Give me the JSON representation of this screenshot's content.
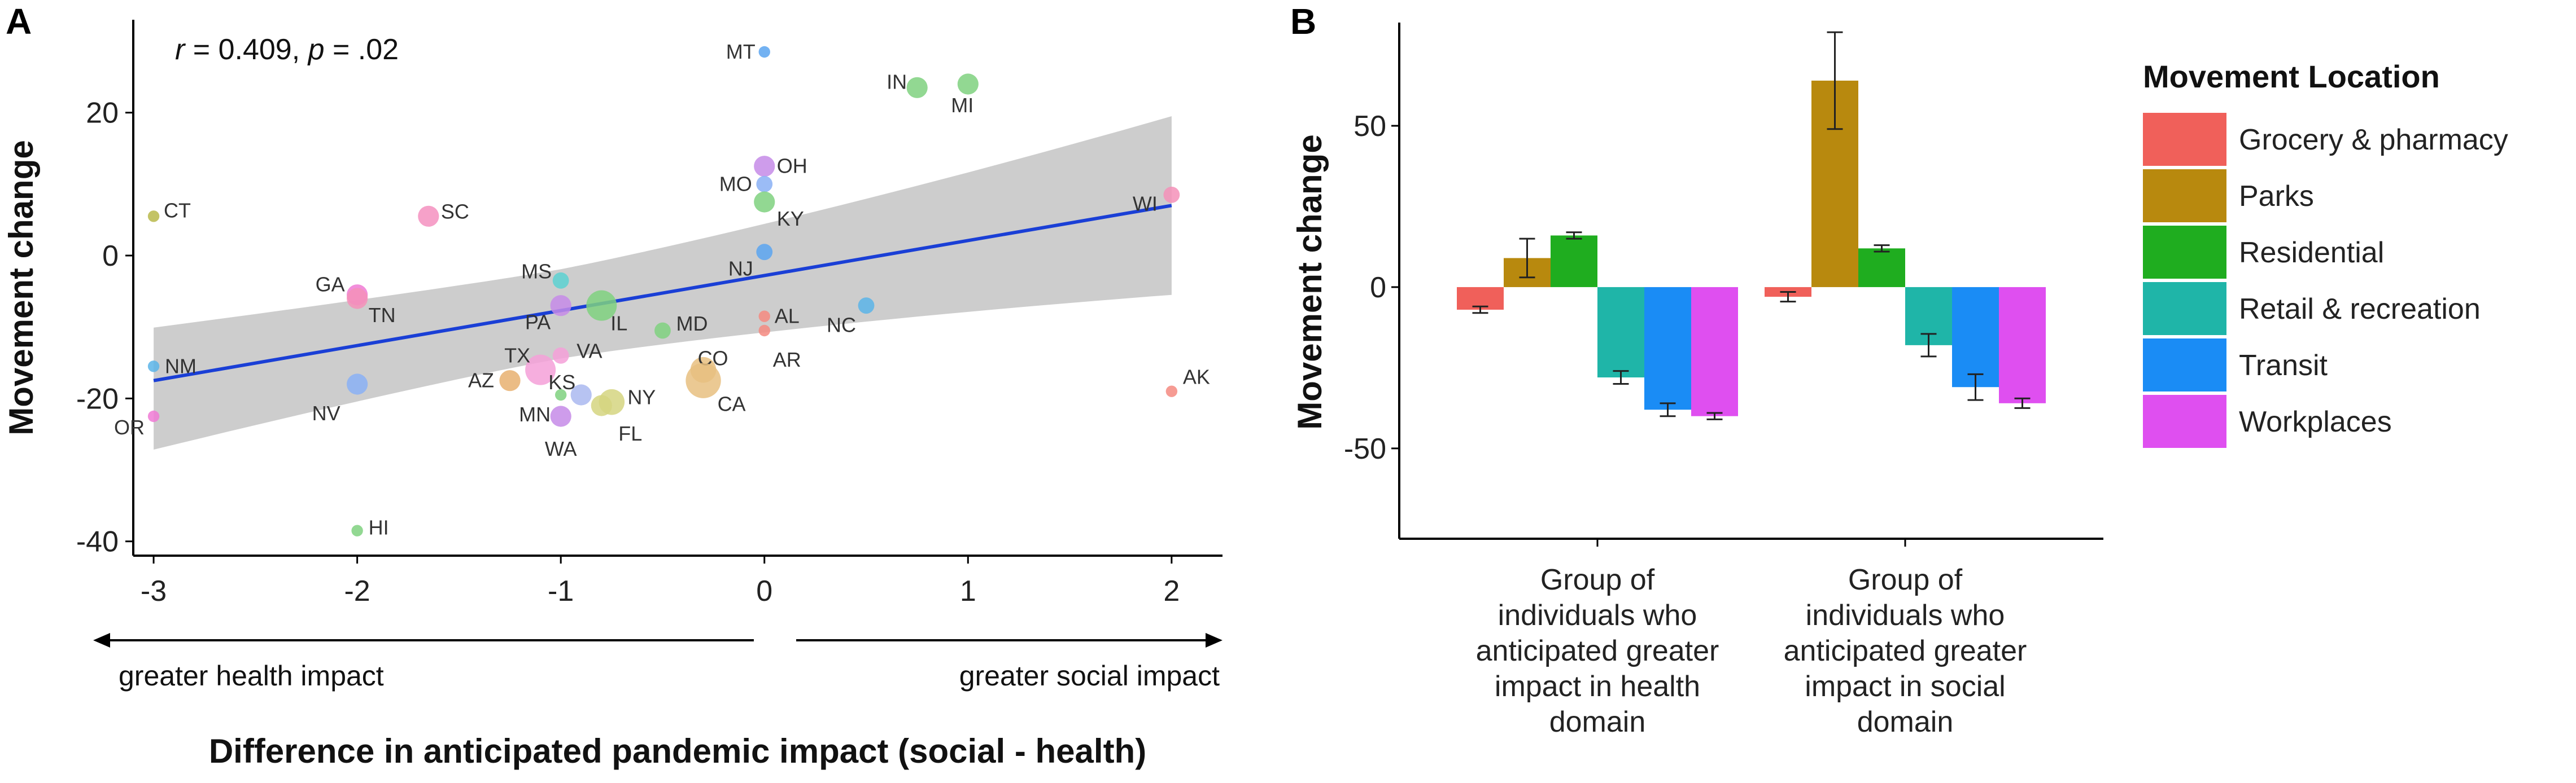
{
  "chart_data": [
    {
      "panel": "A",
      "type": "scatter",
      "title": "",
      "xlabel": "Difference in anticipated pandemic impact (social - health)",
      "ylabel": "Movement change",
      "xlim": [
        -3.1,
        2.25
      ],
      "ylim": [
        -42,
        33
      ],
      "xticks": [
        -3,
        -2,
        -1,
        0,
        1,
        2
      ],
      "yticks": [
        -40,
        -20,
        0,
        20
      ],
      "annotation": {
        "r_label": "r",
        "r_text": " = 0.409, ",
        "p_label": "p",
        "p_text": " = .02"
      },
      "arrows": {
        "left": "greater health impact",
        "right": "greater social impact"
      },
      "regression": {
        "x": [
          -3,
          2
        ],
        "y": [
          -17.5,
          7
        ],
        "ci_upper": [
          -8.3,
          19.5
        ],
        "ci_lower": [
          -29.5,
          -5.5
        ]
      },
      "points": [
        {
          "label": "MT",
          "x": 0.0,
          "y": 28.5,
          "size": 1,
          "color": "#5aa5f0"
        },
        {
          "label": "IN",
          "x": 0.75,
          "y": 23.5,
          "size": 3,
          "color": "#7fd17f"
        },
        {
          "label": "MI",
          "x": 1.0,
          "y": 24.0,
          "size": 3,
          "color": "#7fd17f"
        },
        {
          "label": "OH",
          "x": 0.0,
          "y": 12.5,
          "size": 3,
          "color": "#c58be8"
        },
        {
          "label": "MO",
          "x": 0.0,
          "y": 10.0,
          "size": 2,
          "color": "#8ab0f5"
        },
        {
          "label": "KY",
          "x": 0.0,
          "y": 7.5,
          "size": 3,
          "color": "#7fd17f"
        },
        {
          "label": "WI",
          "x": 2.0,
          "y": 8.5,
          "size": 2,
          "color": "#f590b8"
        },
        {
          "label": "CT",
          "x": -3.0,
          "y": 5.5,
          "size": 1,
          "color": "#b9b94a"
        },
        {
          "label": "SC",
          "x": -1.65,
          "y": 5.5,
          "size": 3,
          "color": "#f590c0"
        },
        {
          "label": "NJ",
          "x": 0.0,
          "y": 0.5,
          "size": 2,
          "color": "#5aa5f0"
        },
        {
          "label": "MS",
          "x": -1.0,
          "y": -3.5,
          "size": 2,
          "color": "#5cd1d1"
        },
        {
          "label": "GA",
          "x": -2.0,
          "y": -5.5,
          "size": 3,
          "color": "#f07ad5"
        },
        {
          "label": "TN",
          "x": -2.0,
          "y": -6.0,
          "size": 3,
          "color": "#f590b8"
        },
        {
          "label": "IL",
          "x": -0.8,
          "y": -7.0,
          "size": 5,
          "color": "#7fd17f"
        },
        {
          "label": "PA",
          "x": -1.0,
          "y": -7.0,
          "size": 3,
          "color": "#c58be8"
        },
        {
          "label": "NC",
          "x": 0.5,
          "y": -7.0,
          "size": 2,
          "color": "#5ab4e8"
        },
        {
          "label": "AL",
          "x": 0.0,
          "y": -8.5,
          "size": 1,
          "color": "#f58a80"
        },
        {
          "label": "MD",
          "x": -0.5,
          "y": -10.5,
          "size": 2,
          "color": "#7fd17f"
        },
        {
          "label": "AR",
          "x": 0.0,
          "y": -10.5,
          "size": 1,
          "color": "#f58a80"
        },
        {
          "label": "VA",
          "x": -1.0,
          "y": -14.0,
          "size": 2,
          "color": "#f5a0d8"
        },
        {
          "label": "TX",
          "x": -1.1,
          "y": -16.0,
          "size": 5,
          "color": "#f5a0d8"
        },
        {
          "label": "CO",
          "x": -0.3,
          "y": -16.0,
          "size": 4,
          "color": "#e8c080"
        },
        {
          "label": "AZ",
          "x": -1.25,
          "y": -17.5,
          "size": 3,
          "color": "#e8b070"
        },
        {
          "label": "CA",
          "x": -0.3,
          "y": -17.5,
          "size": 6,
          "color": "#e8c080"
        },
        {
          "label": "NM",
          "x": -3.0,
          "y": -15.5,
          "size": 1,
          "color": "#5ab4e8"
        },
        {
          "label": "KS",
          "x": -0.9,
          "y": -19.5,
          "size": 3,
          "color": "#aab8f0"
        },
        {
          "label": "NY",
          "x": -0.75,
          "y": -20.5,
          "size": 4,
          "color": "#d5d580"
        },
        {
          "label": "MN",
          "x": -1.0,
          "y": -19.5,
          "size": 1,
          "color": "#7fd17f"
        },
        {
          "label": "NV",
          "x": -2.0,
          "y": -18.0,
          "size": 3,
          "color": "#8ab0f5"
        },
        {
          "label": "FL",
          "x": -0.8,
          "y": -21.0,
          "size": 3,
          "color": "#d5d580"
        },
        {
          "label": "AK",
          "x": 2.0,
          "y": -19.0,
          "size": 1,
          "color": "#f58a80"
        },
        {
          "label": "WA",
          "x": -1.0,
          "y": -22.5,
          "size": 3,
          "color": "#c58be8"
        },
        {
          "label": "OR",
          "x": -3.0,
          "y": -22.5,
          "size": 1,
          "color": "#f07ad5"
        },
        {
          "label": "HI",
          "x": -2.0,
          "y": -38.5,
          "size": 1,
          "color": "#7fd17f"
        }
      ]
    },
    {
      "panel": "B",
      "type": "bar",
      "title": "",
      "xlabel": "",
      "ylabel": "Movement change",
      "ylim": [
        -78,
        82
      ],
      "yticks": [
        -50,
        0,
        50
      ],
      "categories": [
        "Group of individuals who anticipated greater impact in health domain",
        "Group of individuals who anticipated greater impact in social domain"
      ],
      "category_lines": [
        [
          "Group of",
          "individuals who",
          "anticipated greater",
          "impact in health",
          "domain"
        ],
        [
          "Group of",
          "individuals who",
          "anticipated greater",
          "impact in social",
          "domain"
        ]
      ],
      "legend_title": "Movement Location",
      "series": [
        {
          "name": "Grocery & pharmacy",
          "color": "#f0605a",
          "values": [
            -7,
            -3
          ],
          "errors": [
            1,
            1.5
          ]
        },
        {
          "name": "Parks",
          "color": "#b8890e",
          "values": [
            9,
            64
          ],
          "errors": [
            6,
            15
          ]
        },
        {
          "name": "Residential",
          "color": "#1fad1f",
          "values": [
            16,
            12
          ],
          "errors": [
            1,
            1
          ]
        },
        {
          "name": "Retail & recreation",
          "color": "#1fb5a8",
          "values": [
            -28,
            -18
          ],
          "errors": [
            2,
            3.5
          ]
        },
        {
          "name": "Transit",
          "color": "#1a8cf5",
          "values": [
            -38,
            -31
          ],
          "errors": [
            2,
            4
          ]
        },
        {
          "name": "Workplaces",
          "color": "#df4ff0",
          "values": [
            -40,
            -36
          ],
          "errors": [
            1,
            1.5
          ]
        }
      ]
    }
  ]
}
